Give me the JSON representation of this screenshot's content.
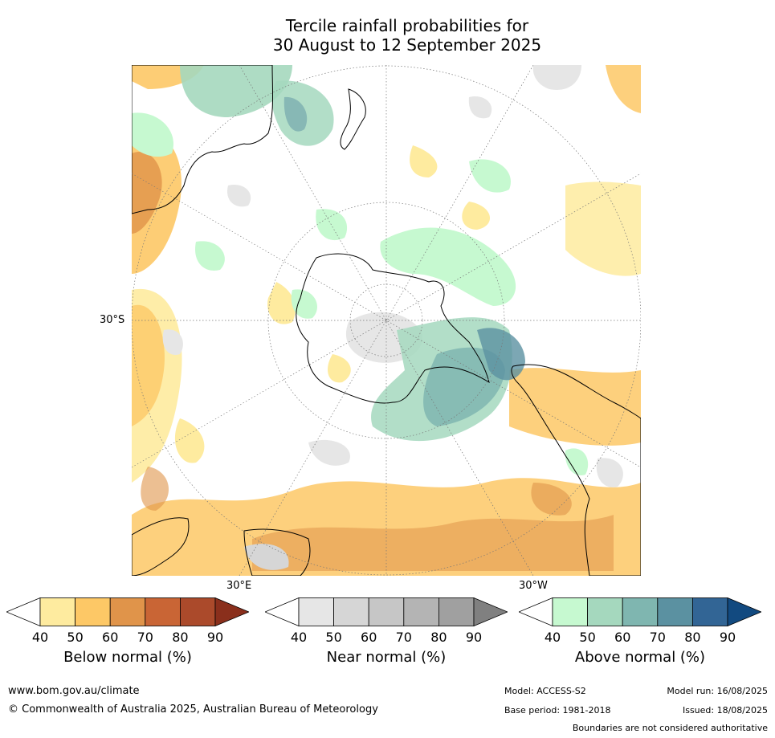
{
  "title_line1": "Tercile rainfall probabilities for",
  "title_line2": "30 August to 12 September 2025",
  "map_labels": {
    "lat_30s": "30°S",
    "lon_30e": "30°E",
    "lon_30w": "30°W"
  },
  "colorbars": [
    {
      "title": "Below normal (%)",
      "ticks": [
        "40",
        "50",
        "60",
        "70",
        "80",
        "90"
      ],
      "colors": [
        "#ffffff",
        "#feeb9f",
        "#fdc866",
        "#e0944a",
        "#c96535",
        "#ab4a2b",
        "#8a2f1c"
      ]
    },
    {
      "title": "Near normal (%)",
      "ticks": [
        "40",
        "50",
        "60",
        "70",
        "80",
        "90"
      ],
      "colors": [
        "#ffffff",
        "#e6e6e6",
        "#d6d6d6",
        "#c6c6c6",
        "#b4b4b4",
        "#a0a0a0",
        "#808080"
      ]
    },
    {
      "title": "Above normal (%)",
      "ticks": [
        "40",
        "50",
        "60",
        "70",
        "80",
        "90"
      ],
      "colors": [
        "#ffffff",
        "#c6f9d0",
        "#a5d8be",
        "#7fb6b0",
        "#5b91a1",
        "#326595",
        "#124a80"
      ]
    }
  ],
  "footer": {
    "website": "www.bom.gov.au/climate",
    "copyright": "© Commonwealth of Australia 2025, Australian Bureau of Meteorology",
    "model": "Model: ACCESS-S2",
    "model_run": "Model run: 16/08/2025",
    "base_period": "Base period: 1981-2018",
    "issued": "Issued: 18/08/2025",
    "boundaries": "Boundaries are not considered authoritative"
  },
  "chart_data": {
    "type": "heatmap",
    "projection": "south polar stereographic",
    "extent_south_latitude": "30°S",
    "variable": "tercile rainfall probability",
    "regions": [
      {
        "name": "Southern Ocean south of South America / Drake Passage",
        "category": "above normal",
        "level": "60-80"
      },
      {
        "name": "West Antarctic coast / Bellingshausen Sea",
        "category": "above normal",
        "level": "50-70"
      },
      {
        "name": "New Zealand and Tasman Sea",
        "category": "above normal",
        "level": "50-70"
      },
      {
        "name": "Southern Australia",
        "category": "below normal",
        "level": "50-70"
      },
      {
        "name": "Southern Africa and adjacent ocean",
        "category": "below normal",
        "level": "50-80"
      },
      {
        "name": "South Atlantic near 30°S",
        "category": "below normal",
        "level": "50-70"
      },
      {
        "name": "Indian Ocean near 30°S",
        "category": "below normal",
        "level": "50-60"
      },
      {
        "name": "Central Antarctic plateau",
        "category": "near normal",
        "level": "40-50"
      }
    ]
  }
}
